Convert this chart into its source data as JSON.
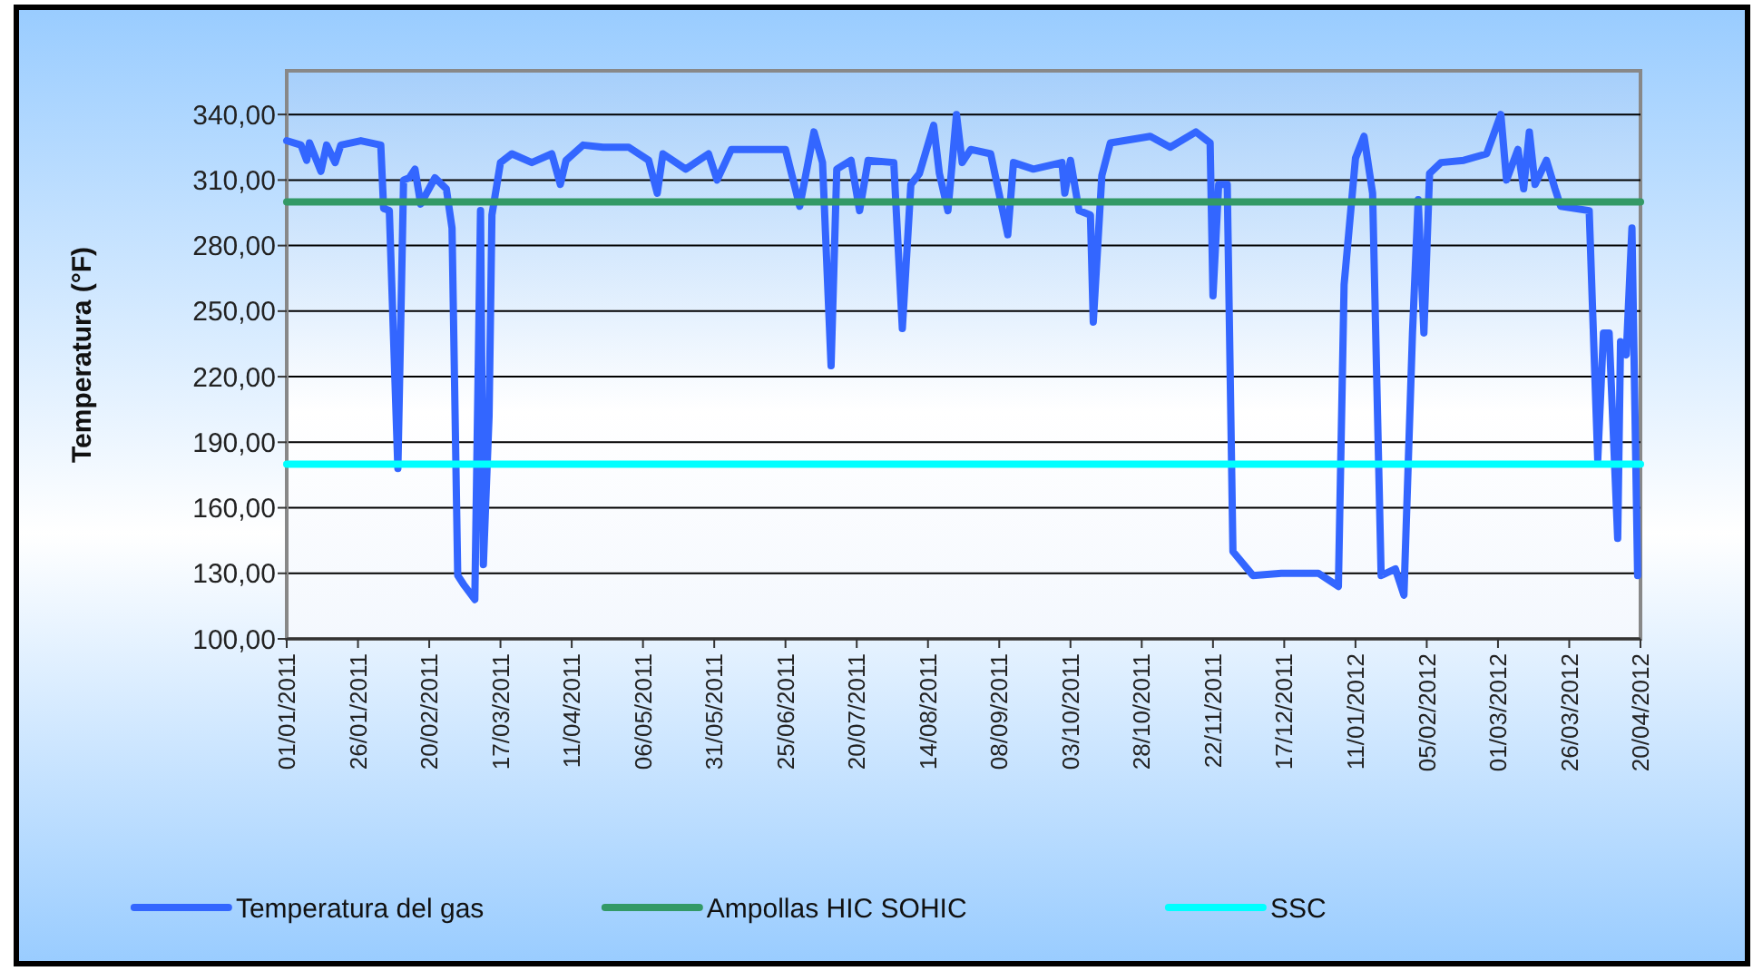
{
  "chart_data": {
    "type": "line",
    "ylabel": "Temperatura  (°F)",
    "legend": "bottom",
    "grid": "y",
    "xlim": [
      "2011-01-01",
      "2012-04-20"
    ],
    "xticks": [
      {
        "value": "2011-01-01",
        "label": "01/01/2011"
      },
      {
        "value": "2011-01-26",
        "label": "26/01/2011"
      },
      {
        "value": "2011-02-20",
        "label": "20/02/2011"
      },
      {
        "value": "2011-03-17",
        "label": "17/03/2011"
      },
      {
        "value": "2011-04-11",
        "label": "11/04/2011"
      },
      {
        "value": "2011-05-06",
        "label": "06/05/2011"
      },
      {
        "value": "2011-05-31",
        "label": "31/05/2011"
      },
      {
        "value": "2011-06-25",
        "label": "25/06/2011"
      },
      {
        "value": "2011-07-20",
        "label": "20/07/2011"
      },
      {
        "value": "2011-08-14",
        "label": "14/08/2011"
      },
      {
        "value": "2011-09-08",
        "label": "08/09/2011"
      },
      {
        "value": "2011-10-03",
        "label": "03/10/2011"
      },
      {
        "value": "2011-10-28",
        "label": "28/10/2011"
      },
      {
        "value": "2011-11-22",
        "label": "22/11/2011"
      },
      {
        "value": "2011-12-17",
        "label": "17/12/2011"
      },
      {
        "value": "2012-01-11",
        "label": "11/01/2012"
      },
      {
        "value": "2012-02-05",
        "label": "05/02/2012"
      },
      {
        "value": "2012-03-01",
        "label": "01/03/2012"
      },
      {
        "value": "2012-03-26",
        "label": "26/03/2012"
      },
      {
        "value": "2012-04-20",
        "label": "20/04/2012"
      }
    ],
    "ylim": [
      100,
      360
    ],
    "yticks": [
      {
        "value": 100,
        "label": "100,00"
      },
      {
        "value": 130,
        "label": "130,00"
      },
      {
        "value": 160,
        "label": "160,00"
      },
      {
        "value": 190,
        "label": "190,00"
      },
      {
        "value": 220,
        "label": "220,00"
      },
      {
        "value": 250,
        "label": "250,00"
      },
      {
        "value": 280,
        "label": "280,00"
      },
      {
        "value": 310,
        "label": "310,00"
      },
      {
        "value": 340,
        "label": "340,00"
      }
    ],
    "series": [
      {
        "name": "Temperatura del gas",
        "color": "#3366ff",
        "x": [
          "2011-01-01",
          "2011-01-06",
          "2011-01-08",
          "2011-01-09",
          "2011-01-13",
          "2011-01-15",
          "2011-01-18",
          "2011-01-20",
          "2011-01-27",
          "2011-02-03",
          "2011-02-04",
          "2011-02-06",
          "2011-02-09",
          "2011-02-11",
          "2011-02-13",
          "2011-02-15",
          "2011-02-17",
          "2011-02-22",
          "2011-02-26",
          "2011-02-28",
          "2011-03-02",
          "2011-03-04",
          "2011-03-08",
          "2011-03-10",
          "2011-03-11",
          "2011-03-13",
          "2011-03-14",
          "2011-03-17",
          "2011-03-21",
          "2011-03-28",
          "2011-04-04",
          "2011-04-07",
          "2011-04-09",
          "2011-04-15",
          "2011-04-22",
          "2011-05-01",
          "2011-05-08",
          "2011-05-11",
          "2011-05-13",
          "2011-05-21",
          "2011-05-29",
          "2011-06-01",
          "2011-06-06",
          "2011-06-25",
          "2011-06-30",
          "2011-07-05",
          "2011-07-08",
          "2011-07-11",
          "2011-07-13",
          "2011-07-18",
          "2011-07-21",
          "2011-07-24",
          "2011-08-02",
          "2011-08-05",
          "2011-08-08",
          "2011-08-11",
          "2011-08-16",
          "2011-08-18",
          "2011-08-21",
          "2011-08-24",
          "2011-08-26",
          "2011-08-29",
          "2011-09-05",
          "2011-09-11",
          "2011-09-13",
          "2011-09-20",
          "2011-09-30",
          "2011-10-01",
          "2011-10-03",
          "2011-10-06",
          "2011-10-10",
          "2011-10-11",
          "2011-10-14",
          "2011-10-17",
          "2011-10-31",
          "2011-11-07",
          "2011-11-16",
          "2011-11-21",
          "2011-11-22",
          "2011-11-24",
          "2011-11-27",
          "2011-11-29",
          "2011-12-06",
          "2011-12-16",
          "2011-12-29",
          "2012-01-05",
          "2012-01-07",
          "2012-01-11",
          "2012-01-14",
          "2012-01-17",
          "2012-01-20",
          "2012-01-25",
          "2012-01-28",
          "2012-01-31",
          "2012-02-02",
          "2012-02-04",
          "2012-02-06",
          "2012-02-10",
          "2012-02-18",
          "2012-02-26",
          "2012-03-02",
          "2012-03-04",
          "2012-03-08",
          "2012-03-10",
          "2012-03-12",
          "2012-03-14",
          "2012-03-18",
          "2012-03-21",
          "2012-03-23",
          "2012-04-02",
          "2012-04-05",
          "2012-04-07",
          "2012-04-09",
          "2012-04-12",
          "2012-04-13",
          "2012-04-15",
          "2012-04-17",
          "2012-04-19"
        ],
        "values": [
          328,
          326,
          319,
          327,
          314,
          326,
          318,
          326,
          328,
          326,
          297,
          296,
          178,
          310,
          311,
          315,
          299,
          311,
          306,
          288,
          129,
          125,
          118,
          296,
          134,
          202,
          294,
          318,
          322,
          318,
          322,
          308,
          319,
          326,
          325,
          325,
          319,
          304,
          322,
          315,
          322,
          310,
          324,
          324,
          298,
          332,
          318,
          225,
          315,
          319,
          296,
          319,
          318,
          242,
          308,
          313,
          335,
          313,
          296,
          340,
          318,
          324,
          322,
          285,
          318,
          315,
          318,
          304,
          319,
          296,
          294,
          245,
          312,
          327,
          330,
          325,
          332,
          327,
          257,
          308,
          308,
          140,
          129,
          130,
          130,
          124,
          262,
          320,
          330,
          304,
          129,
          132,
          120,
          240,
          301,
          240,
          313,
          318,
          319,
          322,
          340,
          310,
          324,
          306,
          332,
          308,
          319,
          306,
          298,
          296,
          182,
          240,
          240,
          146,
          236,
          230,
          288,
          129
        ]
      },
      {
        "name": "Ampollas HIC SOHIC",
        "color": "#339966",
        "x": [
          "2011-01-01",
          "2012-04-20"
        ],
        "values": [
          300,
          300
        ]
      },
      {
        "name": "SSC",
        "color": "#00ffff",
        "x": [
          "2011-01-01",
          "2012-04-20"
        ],
        "values": [
          180,
          180
        ]
      }
    ]
  }
}
